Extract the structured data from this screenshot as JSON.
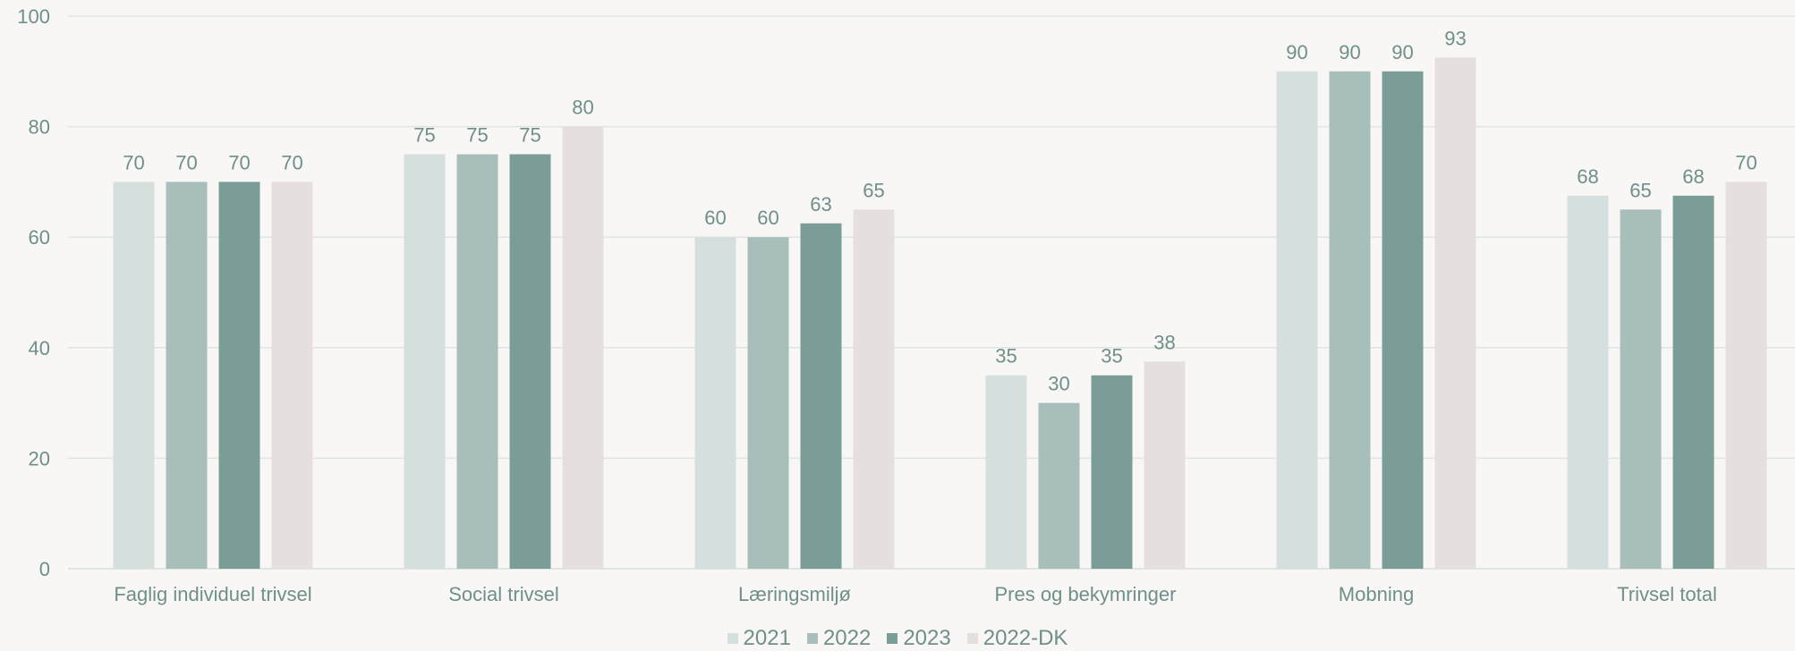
{
  "chart_data": {
    "type": "bar",
    "categories": [
      "Faglig individuel trivsel",
      "Social trivsel",
      "Læringsmiljø",
      "Pres og bekymringer",
      "Mobning",
      "Trivsel total"
    ],
    "series": [
      {
        "name": "2021",
        "values": [
          70,
          75,
          60,
          35,
          90,
          67.5
        ],
        "labels": [
          "70",
          "75",
          "60",
          "35",
          "90",
          "68"
        ],
        "color": "#d5dfde"
      },
      {
        "name": "2022",
        "values": [
          70,
          75,
          60,
          30,
          90,
          65
        ],
        "labels": [
          "70",
          "75",
          "60",
          "30",
          "90",
          "65"
        ],
        "color": "#a7beba"
      },
      {
        "name": "2023",
        "values": [
          70,
          75,
          62.5,
          35,
          90,
          67.5
        ],
        "labels": [
          "70",
          "75",
          "63",
          "35",
          "90",
          "68"
        ],
        "color": "#7a9d97"
      },
      {
        "name": "2022-DK",
        "values": [
          70,
          80,
          65,
          37.5,
          92.5,
          70
        ],
        "labels": [
          "70",
          "80",
          "65",
          "38",
          "93",
          "70"
        ],
        "color": "#e5e0dd"
      }
    ],
    "y_ticks": [
      "0",
      "20",
      "40",
      "60",
      "80",
      "100"
    ],
    "ylim": [
      0,
      100
    ],
    "grid": true,
    "legend_position": "bottom",
    "text_color": "#6e8f8a",
    "grid_color": "#dfe5e3"
  }
}
